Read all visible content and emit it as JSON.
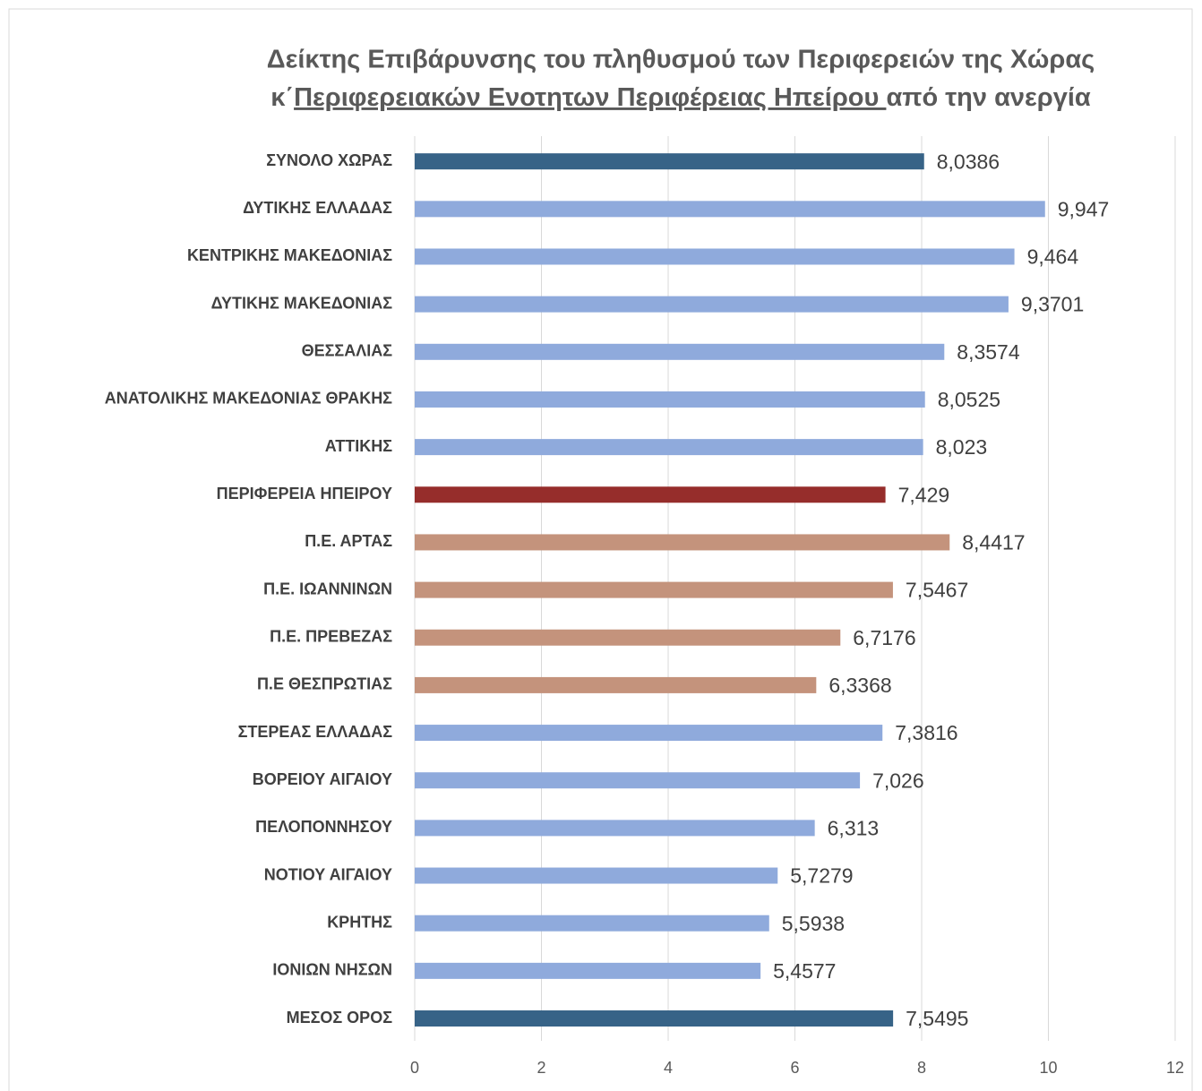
{
  "chart_data": {
    "type": "bar",
    "orientation": "horizontal",
    "title": [
      "Δείκτης Επιβάρυνσης του πληθυσμού των Περιφερειών της Χώρας",
      "κ΄",
      "Περιφερειακών Ενοτητων Περιφέρειας Ηπείρου ",
      "από την ανεργία"
    ],
    "categories": [
      "ΣΥΝΟΛΟ ΧΩΡΑΣ",
      "ΔΥΤΙΚΗΣ ΕΛΛΑΔΑΣ",
      "ΚΕΝΤΡΙΚΗΣ ΜΑΚΕΔΟΝΙΑΣ",
      "ΔΥΤΙΚΗΣ ΜΑΚΕΔΟΝΙΑΣ",
      "ΘΕΣΣΑΛΙΑΣ",
      "ΑΝΑΤΟΛΙΚΗΣ ΜΑΚΕΔΟΝΙΑΣ ΘΡΑΚΗΣ",
      "ΑΤΤΙΚΗΣ",
      "ΠΕΡΙΦΕΡΕΙΑ ΗΠΕΙΡΟΥ",
      "Π.Ε. ΑΡΤΑΣ",
      "Π.Ε. ΙΩΑΝΝΙΝΩΝ",
      "Π.Ε. ΠΡΕΒΕΖΑΣ",
      "Π.Ε ΘΕΣΠΡΩΤΙΑΣ",
      "ΣΤΕΡΕΑΣ ΕΛΛΑΔΑΣ",
      "ΒΟΡΕΙΟΥ ΑΙΓΑΙΟΥ",
      "ΠΕΛΟΠΟΝΝΗΣΟΥ",
      "ΝΟΤΙΟΥ ΑΙΓΑΙΟΥ",
      "ΚΡΗΤΗΣ",
      "ΙΟΝΙΩΝ ΝΗΣΩΝ",
      "ΜΕΣΟΣ ΟΡΟΣ"
    ],
    "values": [
      8.0386,
      9.947,
      9.464,
      9.3701,
      8.3574,
      8.0525,
      8.023,
      7.429,
      8.4417,
      7.5467,
      6.7176,
      6.3368,
      7.3816,
      7.026,
      6.313,
      5.7279,
      5.5938,
      5.4577,
      7.5495
    ],
    "value_labels": [
      "8,0386",
      "9,947",
      "9,464",
      "9,3701",
      "8,3574",
      "8,0525",
      "8,023",
      "7,429",
      "8,4417",
      "7,5467",
      "6,7176",
      "6,3368",
      "7,3816",
      "7,026",
      "6,313",
      "5,7279",
      "5,5938",
      "5,4577",
      "7,5495"
    ],
    "colors": [
      "#376387",
      "#8faadc",
      "#8faadc",
      "#8faadc",
      "#8faadc",
      "#8faadc",
      "#8faadc",
      "#962d2b",
      "#c4937c",
      "#c4937c",
      "#c4937c",
      "#c4937c",
      "#8faadc",
      "#8faadc",
      "#8faadc",
      "#8faadc",
      "#8faadc",
      "#8faadc",
      "#376387"
    ],
    "xlim": [
      0,
      12
    ],
    "xticks": [
      0,
      2,
      4,
      6,
      8,
      10,
      12
    ],
    "grid": true
  }
}
